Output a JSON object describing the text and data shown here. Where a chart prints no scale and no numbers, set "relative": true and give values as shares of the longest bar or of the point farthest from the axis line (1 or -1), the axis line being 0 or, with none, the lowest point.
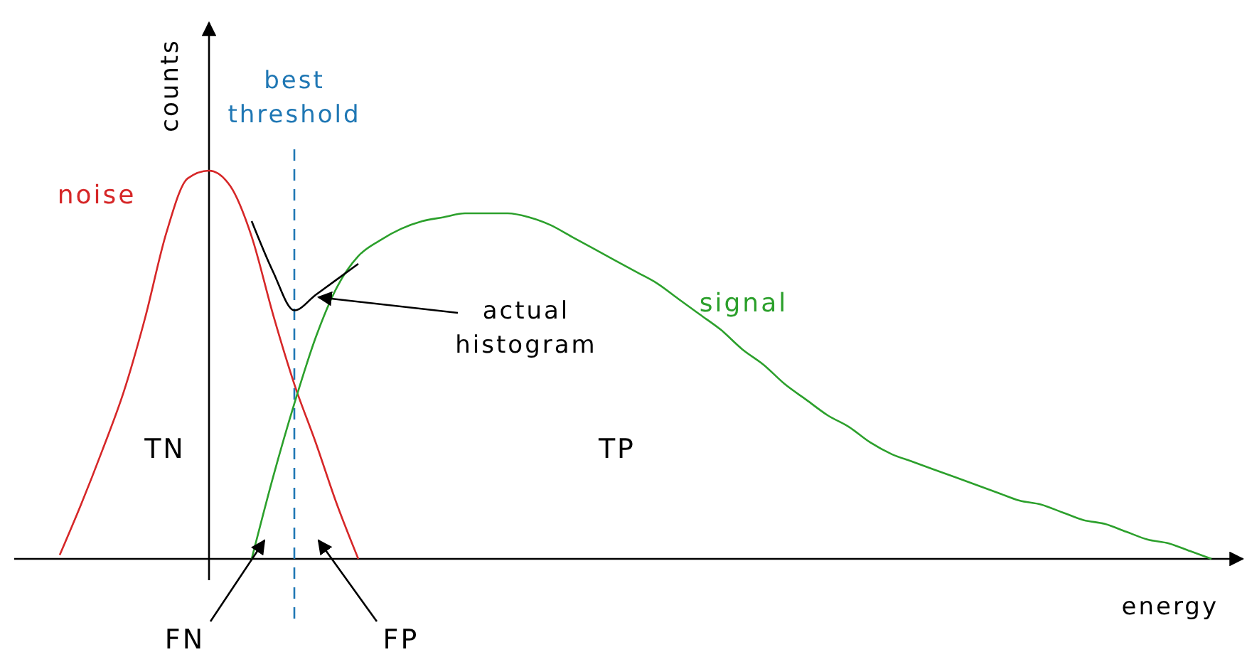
{
  "chart_data": {
    "type": "line",
    "relative": true,
    "xlabel": "energy",
    "ylabel": "counts",
    "legend": false,
    "categories": [
      null,
      null,
      null,
      null,
      null,
      null,
      null,
      null,
      null,
      null,
      null,
      null,
      null,
      null,
      null,
      null,
      null,
      null,
      null,
      null,
      null,
      null,
      null,
      null,
      null,
      null,
      null,
      null,
      null,
      null,
      null,
      null,
      null,
      null,
      null,
      null,
      null,
      null,
      null,
      null,
      null,
      null,
      null,
      null,
      null,
      null,
      null,
      null,
      null,
      null,
      null,
      null,
      null,
      null,
      null,
      null,
      null
    ],
    "series": [
      {
        "name": "noise",
        "color": "#d62728",
        "values": [
          null,
          0.01,
          0.14,
          0.28,
          0.43,
          0.62,
          0.84,
          0.98,
          1,
          0.96,
          0.83,
          0.63,
          0.45,
          0.3,
          0.14,
          0,
          null,
          null,
          null,
          null,
          null,
          null,
          null,
          null,
          null,
          null,
          null,
          null,
          null,
          null,
          null,
          null,
          null,
          null,
          null,
          null,
          null,
          null,
          null,
          null,
          null,
          null,
          null,
          null,
          null,
          null,
          null,
          null,
          null,
          null,
          null,
          null,
          null,
          null,
          null,
          null,
          null
        ]
      },
      {
        "name": "signal",
        "color": "#2ca02c",
        "values": [
          null,
          null,
          null,
          null,
          null,
          null,
          null,
          null,
          null,
          null,
          0,
          0.21,
          0.4,
          0.57,
          0.7,
          0.78,
          0.82,
          0.85,
          0.87,
          0.88,
          0.89,
          0.89,
          0.89,
          0.88,
          0.86,
          0.83,
          0.8,
          0.77,
          0.74,
          0.71,
          0.67,
          0.63,
          0.59,
          0.54,
          0.5,
          0.45,
          0.41,
          0.37,
          0.34,
          0.3,
          0.27,
          0.25,
          0.23,
          0.21,
          0.19,
          0.17,
          0.15,
          0.14,
          0.12,
          0.1,
          0.09,
          0.07,
          0.05,
          0.04,
          0.02,
          0,
          null
        ]
      },
      {
        "color": "#000000",
        "values": [
          null,
          null,
          null,
          null,
          null,
          null,
          null,
          null,
          null,
          null,
          0.87,
          0.74,
          0.64,
          0.68,
          0.72,
          0.76,
          null,
          null,
          null,
          null,
          null,
          null,
          null,
          null,
          null,
          null,
          null,
          null,
          null,
          null,
          null,
          null,
          null,
          null,
          null,
          null,
          null,
          null,
          null,
          null,
          null,
          null,
          null,
          null,
          null,
          null,
          null,
          null,
          null,
          null,
          null,
          null,
          null,
          null,
          null,
          null,
          null
        ]
      }
    ],
    "annotations": [
      "TN",
      "TP",
      "FN",
      "FP",
      "actual histogram",
      "best threshold"
    ]
  }
}
